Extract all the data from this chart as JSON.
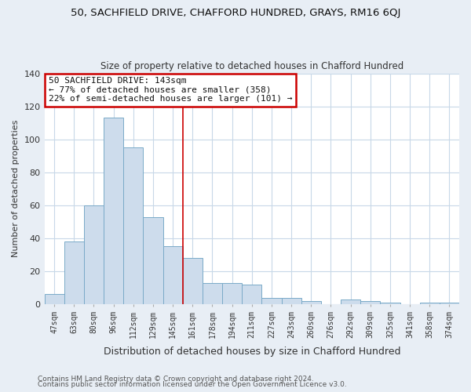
{
  "title": "50, SACHFIELD DRIVE, CHAFFORD HUNDRED, GRAYS, RM16 6QJ",
  "subtitle": "Size of property relative to detached houses in Chafford Hundred",
  "xlabel": "Distribution of detached houses by size in Chafford Hundred",
  "ylabel": "Number of detached properties",
  "categories": [
    "47sqm",
    "63sqm",
    "80sqm",
    "96sqm",
    "112sqm",
    "129sqm",
    "145sqm",
    "161sqm",
    "178sqm",
    "194sqm",
    "211sqm",
    "227sqm",
    "243sqm",
    "260sqm",
    "276sqm",
    "292sqm",
    "309sqm",
    "325sqm",
    "341sqm",
    "358sqm",
    "374sqm"
  ],
  "values": [
    6,
    38,
    60,
    113,
    95,
    53,
    35,
    28,
    13,
    13,
    12,
    4,
    4,
    2,
    0,
    3,
    2,
    1,
    0,
    1,
    1
  ],
  "bar_color": "#cddcec",
  "bar_edge_color": "#7aaac8",
  "vline_x": 6.5,
  "vline_color": "#cc0000",
  "annotation_title": "50 SACHFIELD DRIVE: 143sqm",
  "annotation_line1": "← 77% of detached houses are smaller (358)",
  "annotation_line2": "22% of semi-detached houses are larger (101) →",
  "annotation_box_facecolor": "#ffffff",
  "annotation_box_edgecolor": "#cc0000",
  "ylim": [
    0,
    140
  ],
  "yticks": [
    0,
    20,
    40,
    60,
    80,
    100,
    120,
    140
  ],
  "footer1": "Contains HM Land Registry data © Crown copyright and database right 2024.",
  "footer2": "Contains public sector information licensed under the Open Government Licence v3.0.",
  "bg_color": "#e8eef5",
  "plot_bg_color": "#ffffff",
  "grid_color": "#c8d8e8",
  "title_fontsize": 9.5,
  "subtitle_fontsize": 8.5,
  "ylabel_fontsize": 8,
  "xlabel_fontsize": 9
}
